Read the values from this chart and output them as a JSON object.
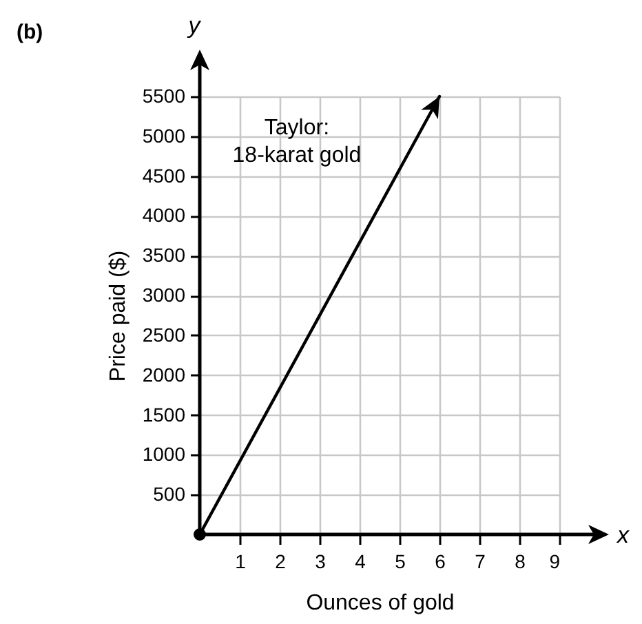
{
  "chart_data": {
    "type": "line",
    "xlabel": "Ounces of gold",
    "ylabel": "Price paid ($)",
    "annotations": [
      "(b)",
      "x",
      "y"
    ],
    "x": [
      0,
      6
    ],
    "series": [
      {
        "name": "Taylor: 18-karat gold",
        "color": "#000000",
        "values": [
          0,
          5500
        ]
      }
    ],
    "xlim": [
      0,
      9
    ],
    "ylim": [
      0,
      5500
    ],
    "xticks": [
      1,
      2,
      3,
      4,
      5,
      6,
      7,
      8,
      9
    ],
    "yticks": [
      500,
      1000,
      1500,
      2000,
      2500,
      3000,
      3500,
      4000,
      4500,
      5000,
      5500
    ],
    "grid": true,
    "legend": false
  }
}
